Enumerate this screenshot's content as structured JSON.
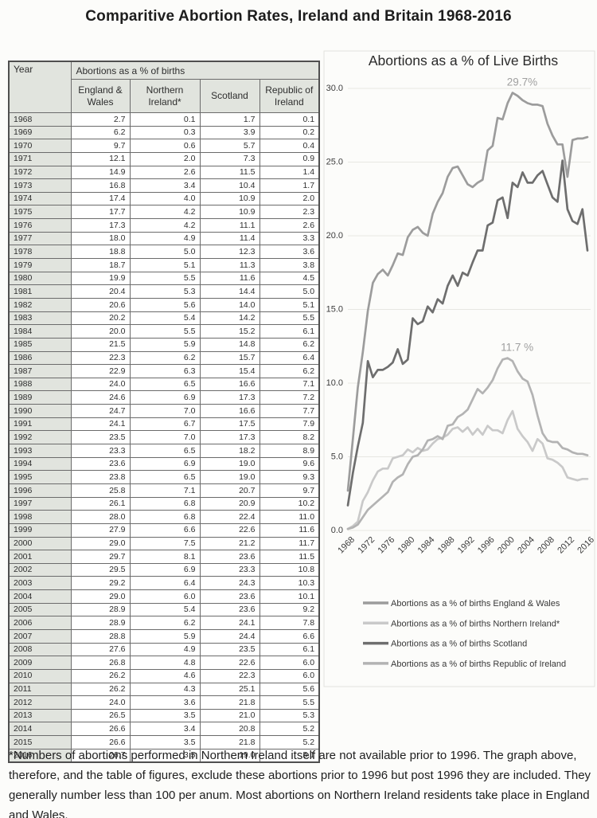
{
  "page": {
    "title": "Comparitive Abortion Rates, Ireland and Britain 1968-2016"
  },
  "table": {
    "year_header": "Year",
    "group_header": "Abortions as a % of births",
    "columns": [
      "England & Wales",
      "Northern Ireland*",
      "Scotland",
      "Republic of Ireland"
    ]
  },
  "chart_data": {
    "type": "line",
    "title": "Abortions as a % of Live Births",
    "xlabel": "",
    "ylabel": "",
    "ylim": [
      0,
      30
    ],
    "yticks": [
      "30.0",
      "25.0",
      "20.0",
      "15.0",
      "10.0",
      "5.0",
      "0.0"
    ],
    "x_tick_labels": [
      "1968",
      "1972",
      "1976",
      "1980",
      "1984",
      "1988",
      "1992",
      "1996",
      "2000",
      "2004",
      "2008",
      "2012",
      "2016"
    ],
    "grid": true,
    "legend_position": "bottom",
    "x": [
      1968,
      1969,
      1970,
      1971,
      1972,
      1973,
      1974,
      1975,
      1976,
      1977,
      1978,
      1979,
      1980,
      1981,
      1982,
      1983,
      1984,
      1985,
      1986,
      1987,
      1988,
      1989,
      1990,
      1991,
      1992,
      1993,
      1994,
      1995,
      1996,
      1997,
      1998,
      1999,
      2000,
      2001,
      2002,
      2003,
      2004,
      2005,
      2006,
      2007,
      2008,
      2009,
      2010,
      2011,
      2012,
      2013,
      2014,
      2015,
      2016
    ],
    "series": [
      {
        "key": "england-wales",
        "name": "Abortions as a % of births England & Wales",
        "color": "#9c9c9c",
        "values": [
          2.7,
          6.2,
          9.7,
          12.1,
          14.9,
          16.8,
          17.4,
          17.7,
          17.3,
          18.0,
          18.8,
          18.7,
          19.9,
          20.4,
          20.6,
          20.2,
          20.0,
          21.5,
          22.3,
          22.9,
          24.0,
          24.6,
          24.7,
          24.1,
          23.5,
          23.3,
          23.6,
          23.8,
          25.8,
          26.1,
          28.0,
          27.9,
          29.0,
          29.7,
          29.5,
          29.2,
          29.0,
          28.9,
          28.9,
          28.8,
          27.6,
          26.8,
          26.2,
          26.2,
          24.0,
          26.5,
          26.6,
          26.6,
          26.7
        ]
      },
      {
        "key": "northern-ireland",
        "name": "Abortions as a % of births Northern Ireland*",
        "color": "#c9c9c9",
        "values": [
          0.1,
          0.3,
          0.6,
          2.0,
          2.6,
          3.4,
          4.0,
          4.2,
          4.2,
          4.9,
          5.0,
          5.1,
          5.5,
          5.3,
          5.6,
          5.4,
          5.5,
          5.9,
          6.2,
          6.3,
          6.5,
          6.9,
          7.0,
          6.7,
          7.0,
          6.5,
          6.9,
          6.5,
          7.1,
          6.8,
          6.8,
          6.6,
          7.5,
          8.1,
          6.9,
          6.4,
          6.0,
          5.4,
          6.2,
          5.9,
          4.9,
          4.8,
          4.6,
          4.3,
          3.6,
          3.5,
          3.4,
          3.5,
          3.5
        ]
      },
      {
        "key": "scotland",
        "name": "Abortions as a % of births Scotland",
        "color": "#6e6e6e",
        "values": [
          1.7,
          3.9,
          5.7,
          7.3,
          11.5,
          10.4,
          10.9,
          10.9,
          11.1,
          11.4,
          12.3,
          11.3,
          11.6,
          14.4,
          14.0,
          14.2,
          15.2,
          14.8,
          15.7,
          15.4,
          16.6,
          17.3,
          16.6,
          17.5,
          17.3,
          18.2,
          19.0,
          19.0,
          20.7,
          20.9,
          22.4,
          22.6,
          21.2,
          23.6,
          23.3,
          24.3,
          23.6,
          23.6,
          24.1,
          24.4,
          23.5,
          22.6,
          22.3,
          25.1,
          21.8,
          21.0,
          20.8,
          21.8,
          19.0
        ]
      },
      {
        "key": "republic-of-ireland",
        "name": "Abortions as a % of births Republic of Ireland",
        "color": "#b3b3b3",
        "values": [
          0.1,
          0.2,
          0.4,
          0.9,
          1.4,
          1.7,
          2.0,
          2.3,
          2.6,
          3.3,
          3.6,
          3.8,
          4.5,
          5.0,
          5.1,
          5.5,
          6.1,
          6.2,
          6.4,
          6.2,
          7.1,
          7.2,
          7.7,
          7.9,
          8.2,
          8.9,
          9.6,
          9.3,
          9.7,
          10.2,
          11.0,
          11.6,
          11.7,
          11.5,
          10.8,
          10.3,
          10.1,
          9.2,
          7.8,
          6.6,
          6.1,
          6.0,
          6.0,
          5.6,
          5.5,
          5.3,
          5.2,
          5.2,
          5.1
        ]
      }
    ],
    "annotations": [
      {
        "text": "29.7%",
        "year": 2001,
        "value": 29.7
      },
      {
        "text": "11.7 %",
        "year": 2000,
        "value": 11.7
      }
    ]
  },
  "footnote": "*Numbers of abortions performed in Northern Ireland itself are not available prior to 1996. The graph above, therefore, and the table of figures, exclude these abortions prior to 1996 but post 1996 they are included. They generally number less than 100 per anum. Most abortions on Northern Ireland residents take place in England and Wales."
}
